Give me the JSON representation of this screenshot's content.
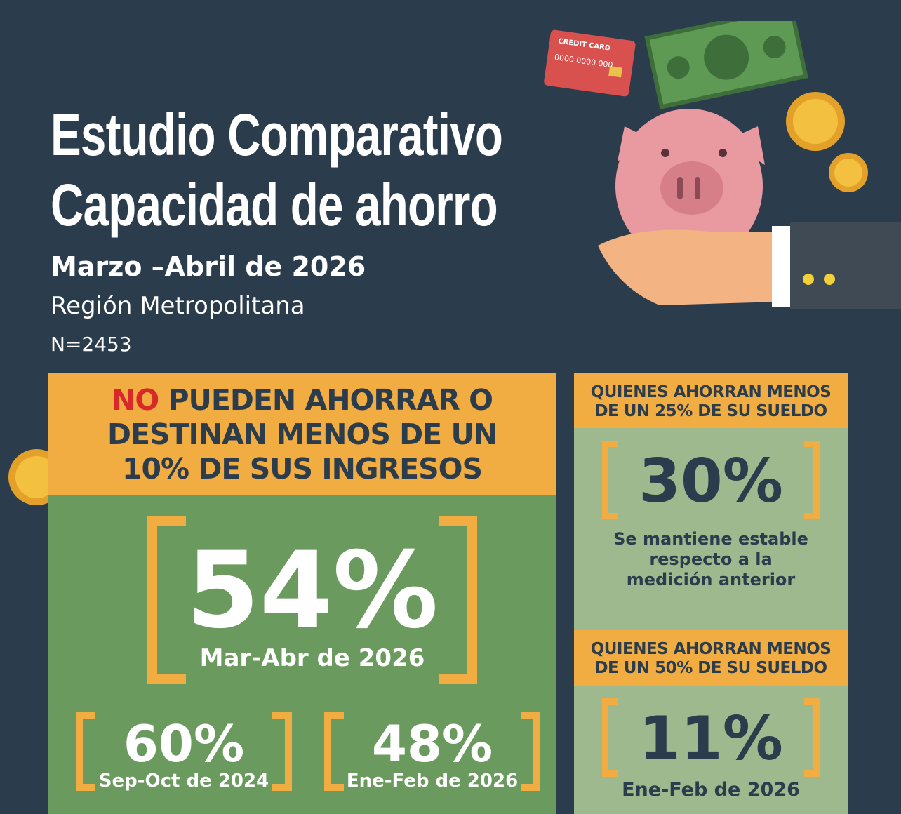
{
  "header": {
    "title_lines": [
      "Estudio Comparativo",
      "Capacidad de ahorro"
    ],
    "period": "Marzo –Abril de 2026",
    "region": "Región Metropolitana",
    "sample": "N=2453"
  },
  "main": {
    "heading_highlight": "NO",
    "heading_lines": [
      "PUEDEN AHORRAR O",
      "DESTINAN MENOS DE UN",
      "10% DE SUS INGRESOS"
    ],
    "current": {
      "value": "54%",
      "period": "Mar-Abr  de 2026"
    },
    "previous": [
      {
        "value": "60%",
        "period": "Sep-Oct  de 2024"
      },
      {
        "value": "48%",
        "period": "Ene-Feb de 2026"
      }
    ]
  },
  "side": [
    {
      "heading_lines": [
        "QUIENES AHORRAN MENOS",
        "DE UN 25% DE SU SUELDO"
      ],
      "value": "30%",
      "note_lines": [
        "Se mantiene estable",
        "respecto a la",
        "medición anterior"
      ]
    },
    {
      "heading_lines": [
        "QUIENES AHORRAN MENOS",
        "DE UN 50% DE SU SUELDO"
      ],
      "value": "11%",
      "period": "Ene-Feb  de 2026"
    }
  ],
  "illustration": {
    "card_label": "CREDIT CARD",
    "card_number": "0000 0000 000"
  }
}
